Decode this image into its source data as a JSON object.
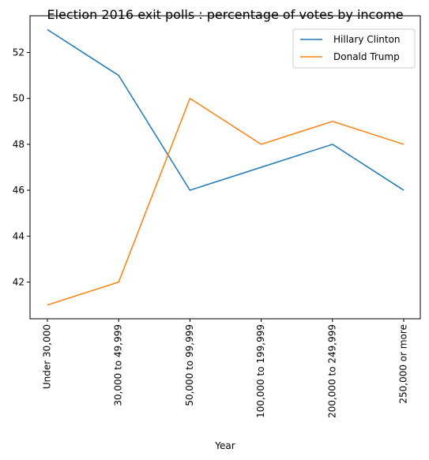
{
  "chart_data": {
    "type": "line",
    "title": "Election 2016 exit polls : percentage of votes by income",
    "xlabel": "Year",
    "ylabel": "",
    "categories": [
      "Under 30,000",
      "30,000 to 49,999",
      "50,000 to 99,999",
      "100,000 to 199,999",
      "200,000 to 249,999",
      "250,000 or more"
    ],
    "ylim": [
      40.4,
      53.6
    ],
    "yticks": [
      "42",
      "44",
      "46",
      "48",
      "50",
      "52"
    ],
    "legend_position": "top-right",
    "grid": false,
    "series": [
      {
        "name": "Hillary Clinton",
        "color": "#1f77b4",
        "values": [
          53,
          51,
          46,
          47,
          48,
          46
        ]
      },
      {
        "name": "Donald Trump",
        "color": "#ff7f0e",
        "values": [
          41,
          42,
          50,
          48,
          49,
          48
        ]
      }
    ]
  }
}
